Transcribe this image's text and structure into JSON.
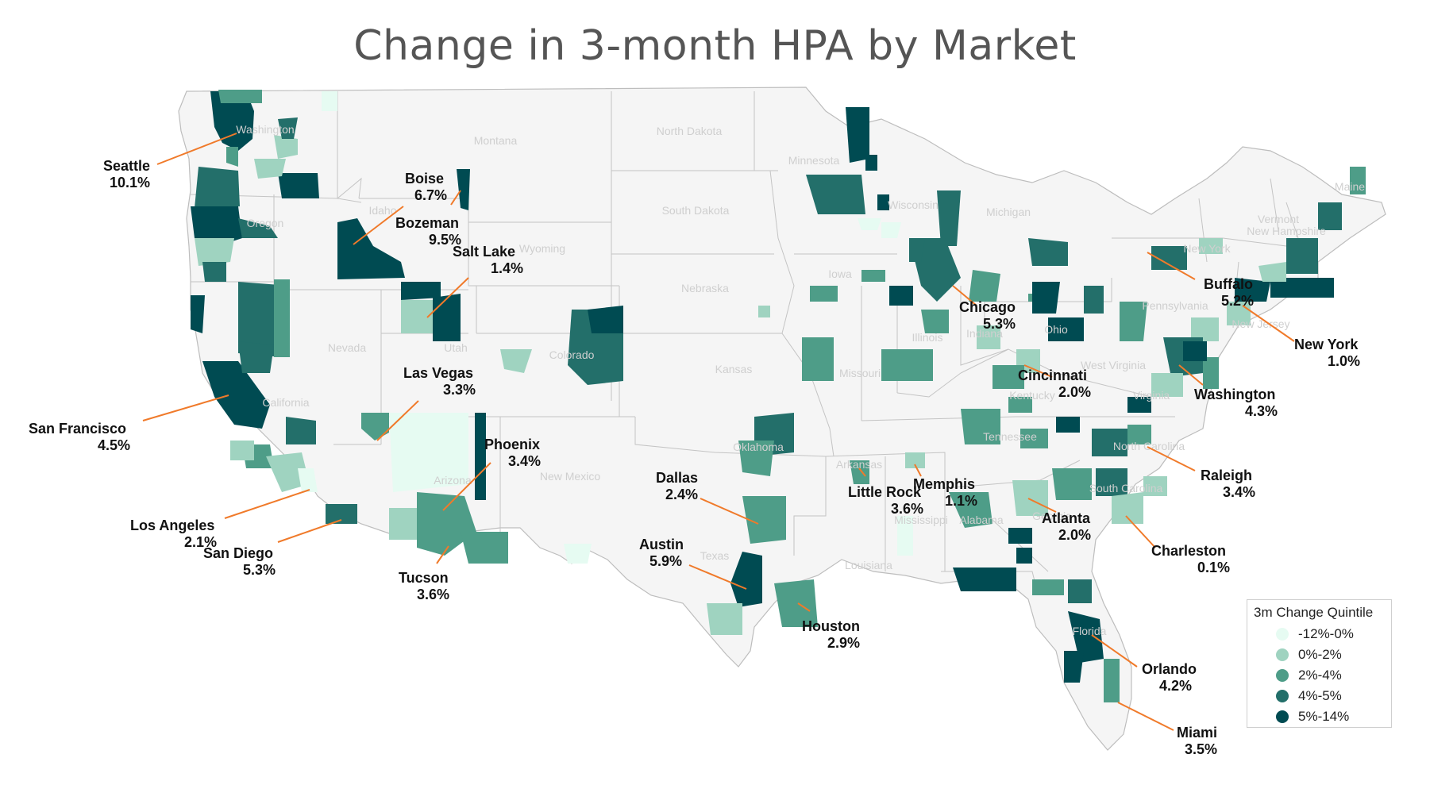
{
  "title": "Change in 3-month HPA by Market",
  "legend": {
    "title": "3m Change Quintile",
    "items": [
      {
        "label": "-12%-0%",
        "color": "#e6fbf2"
      },
      {
        "label": "0%-2%",
        "color": "#9fd3c0"
      },
      {
        "label": "2%-4%",
        "color": "#4e9d88"
      },
      {
        "label": "4%-5%",
        "color": "#236f6a"
      },
      {
        "label": "5%-14%",
        "color": "#004b52"
      }
    ]
  },
  "colors": {
    "land": "#f5f5f5",
    "state_border": "#bdbdbd",
    "leader": "#f07a2a"
  },
  "states": [
    "Washington",
    "Montana",
    "North Dakota",
    "Minnesota",
    "Oregon",
    "Idaho",
    "South Dakota",
    "Wisconsin",
    "Michigan",
    "Wyoming",
    "Maine",
    "Vermont",
    "New Hampshire",
    "New York",
    "Iowa",
    "Nebraska",
    "Pennsylvania",
    "Nevada",
    "Utah",
    "Illinois",
    "Indiana",
    "Ohio",
    "New Jersey",
    "Colorado",
    "Kansas",
    "Missouri",
    "West Virginia",
    "California",
    "Kentucky",
    "Virginia",
    "Oklahoma",
    "Tennessee",
    "North Carolina",
    "Arizona",
    "New Mexico",
    "Arkansas",
    "Mississippi",
    "Alabama",
    "Georgia",
    "South Carolina",
    "Texas",
    "Louisiana",
    "Florida"
  ],
  "markets": [
    {
      "name": "Seattle",
      "value": "10.1%"
    },
    {
      "name": "Boise",
      "value": "6.7%"
    },
    {
      "name": "Bozeman",
      "value": "9.5%"
    },
    {
      "name": "Salt Lake",
      "value": "1.4%"
    },
    {
      "name": "Las Vegas",
      "value": "3.3%"
    },
    {
      "name": "San Francisco",
      "value": "4.5%"
    },
    {
      "name": "Los Angeles",
      "value": "2.1%"
    },
    {
      "name": "San Diego",
      "value": "5.3%"
    },
    {
      "name": "Phoenix",
      "value": "3.4%"
    },
    {
      "name": "Tucson",
      "value": "3.6%"
    },
    {
      "name": "Dallas",
      "value": "2.4%"
    },
    {
      "name": "Austin",
      "value": "5.9%"
    },
    {
      "name": "Houston",
      "value": "2.9%"
    },
    {
      "name": "Little Rock",
      "value": "3.6%"
    },
    {
      "name": "Memphis",
      "value": "1.1%"
    },
    {
      "name": "Atlanta",
      "value": "2.0%"
    },
    {
      "name": "Chicago",
      "value": "5.3%"
    },
    {
      "name": "Cincinnati",
      "value": "2.0%"
    },
    {
      "name": "Buffalo",
      "value": "5.2%"
    },
    {
      "name": "New York",
      "value": "1.0%"
    },
    {
      "name": "Washington",
      "value": "4.3%"
    },
    {
      "name": "Raleigh",
      "value": "3.4%"
    },
    {
      "name": "Charleston",
      "value": "0.1%"
    },
    {
      "name": "Orlando",
      "value": "4.2%"
    },
    {
      "name": "Miami",
      "value": "3.5%"
    }
  ]
}
